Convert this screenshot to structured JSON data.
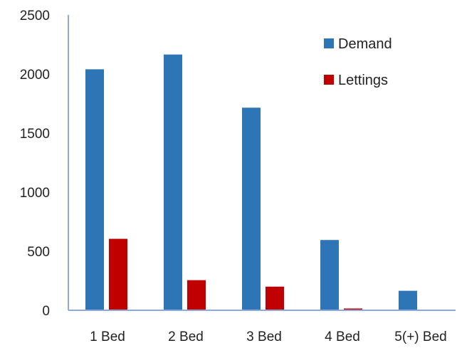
{
  "chart_data": {
    "type": "bar",
    "categories": [
      "1 Bed",
      "2 Bed",
      "3 Bed",
      "4 Bed",
      "5(+) Bed"
    ],
    "series": [
      {
        "name": "Demand",
        "color": "#2E75B6",
        "values": [
          2040,
          2165,
          1715,
          595,
          165
        ]
      },
      {
        "name": "Lettings",
        "color": "#C00000",
        "values": [
          605,
          255,
          200,
          15,
          0
        ]
      }
    ],
    "yticks": [
      "0",
      "500",
      "1000",
      "1500",
      "2000",
      "2500"
    ],
    "ylim": [
      0,
      2500
    ],
    "grid": false,
    "legend_position": "top-right",
    "axis_color": "#8EA9DB"
  }
}
